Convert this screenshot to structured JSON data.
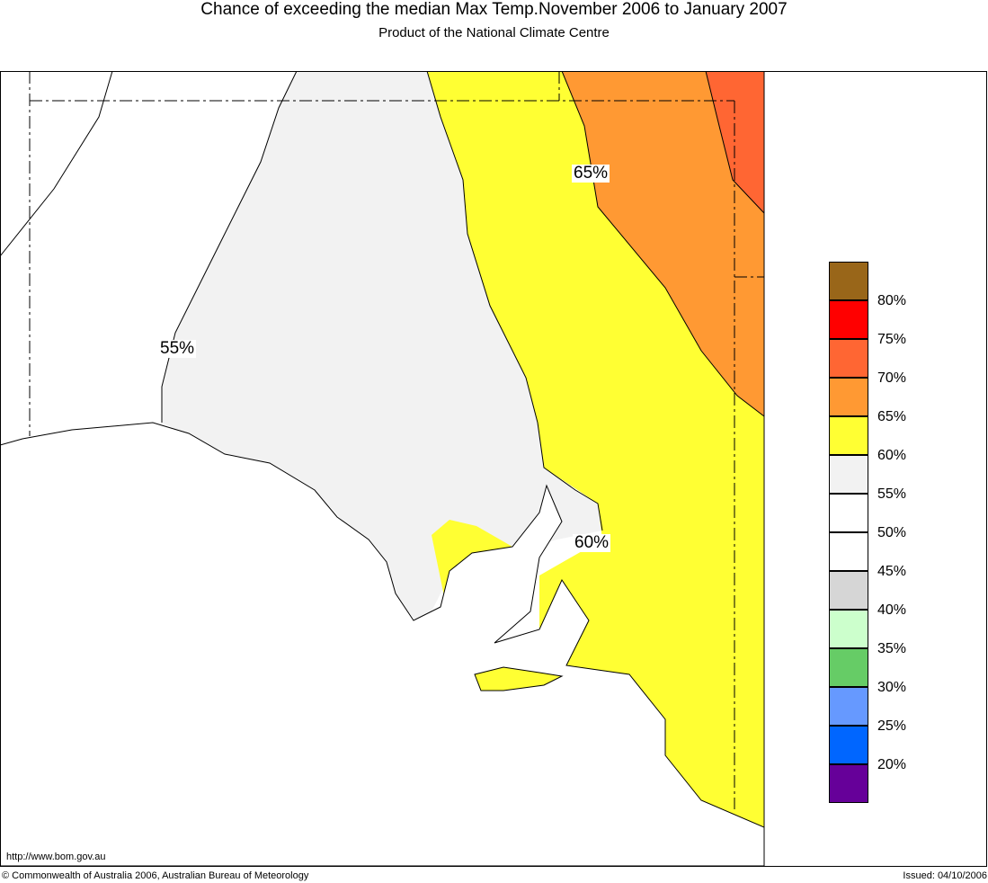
{
  "title": "Chance of exceeding the median Max Temp.November 2006 to January 2007",
  "subtitle": "Product of the National Climate Centre",
  "map_labels": [
    "65%",
    "55%",
    "60%"
  ],
  "legend": {
    "colors": [
      "#996619",
      "#ff0000",
      "#ff6633",
      "#ff9933",
      "#ffff33",
      "#f2f2f2",
      "#ffffff",
      "#ffffff",
      "#d6d6d6",
      "#ccffcc",
      "#66cc66",
      "#6699ff",
      "#0066ff",
      "#660099"
    ],
    "labels": [
      "80%",
      "75%",
      "70%",
      "65%",
      "60%",
      "55%",
      "50%",
      "45%",
      "40%",
      "35%",
      "30%",
      "25%",
      "20%"
    ]
  },
  "url": "http://www.bom.gov.au",
  "copyright": "© Commonwealth of Australia 2006, Australian Bureau of Meteorology",
  "issued": "Issued: 04/10/2006"
}
